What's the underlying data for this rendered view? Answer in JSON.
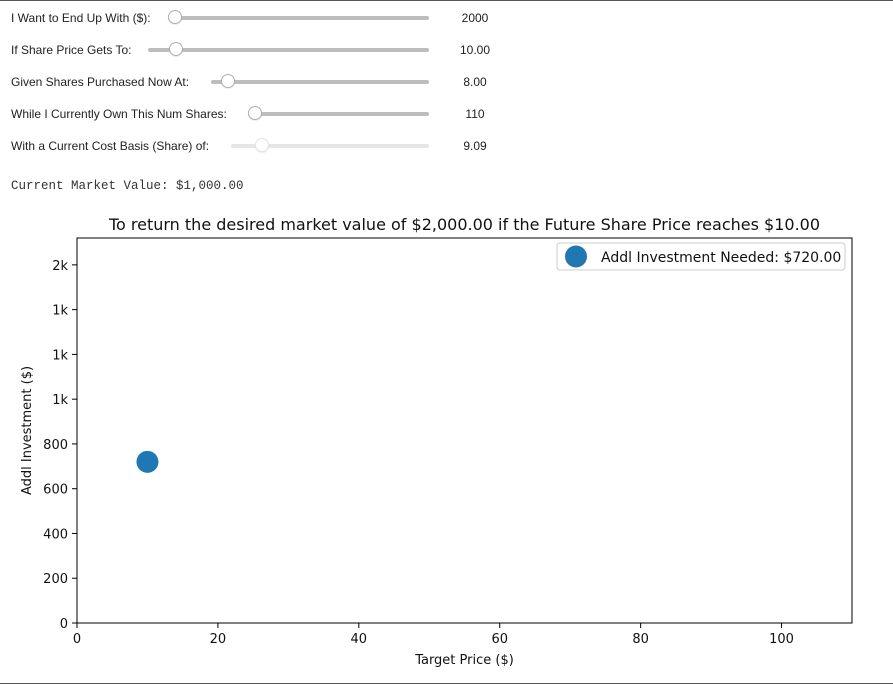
{
  "sliders": [
    {
      "label": "I Want to End Up With ($):",
      "value": "2000",
      "disabled": false
    },
    {
      "label": "If Share Price Gets To:",
      "value": "10.00",
      "disabled": false
    },
    {
      "label": "Given Shares Purchased Now At:",
      "value": "8.00",
      "disabled": false
    },
    {
      "label": "While I Currently Own This Num Shares:",
      "value": "110",
      "disabled": false
    },
    {
      "label": "With a Current Cost Basis (Share) of:",
      "value": "9.09",
      "disabled": true
    }
  ],
  "market_value_text": "Current Market Value: $1,000.00",
  "chart_data": {
    "type": "scatter",
    "title": "To return the desired market value of $2,000.00 if the Future Share Price reaches $10.00",
    "xlabel": "Target Price ($)",
    "ylabel": "Addl Investment ($)",
    "xlim": [
      0,
      110
    ],
    "ylim": [
      0,
      1720
    ],
    "xticks": [
      0,
      20,
      40,
      60,
      80,
      100
    ],
    "xtick_labels": [
      "0",
      "20",
      "40",
      "60",
      "80",
      "100"
    ],
    "yticks": [
      0,
      200,
      400,
      600,
      800,
      1000,
      1200,
      1400,
      1600
    ],
    "ytick_labels": [
      "0",
      "200",
      "400",
      "600",
      "800",
      "1k",
      "1k",
      "1k",
      "2k"
    ],
    "series": [
      {
        "name": "Addl Investment Needed: $720.00",
        "x": [
          10
        ],
        "y": [
          720
        ],
        "color": "#1f77b4"
      }
    ],
    "legend_position": "upper right",
    "grid": false
  }
}
